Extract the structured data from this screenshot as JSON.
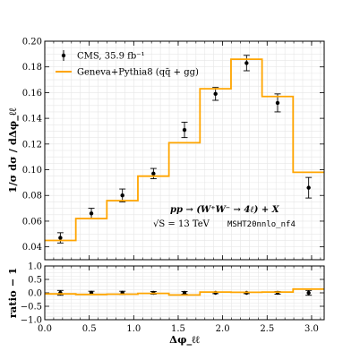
{
  "chart_data": [
    {
      "type": "line",
      "panel": "main",
      "ylabel": "1/σ dσ / dΔφ_ℓℓ",
      "ylim": [
        0.03,
        0.2
      ],
      "xlim": [
        0.0,
        3.1416
      ],
      "grid": true,
      "xticks": [
        "0.0",
        "0.5",
        "1.0",
        "1.5",
        "2.0",
        "2.5",
        "3.0"
      ],
      "xtick_values": [
        0.0,
        0.5,
        1.0,
        1.5,
        2.0,
        2.5,
        3.0
      ],
      "yticks": [
        "0.04",
        "0.06",
        "0.08",
        "0.10",
        "0.12",
        "0.14",
        "0.16",
        "0.18",
        "0.20"
      ],
      "ytick_values": [
        0.04,
        0.06,
        0.08,
        0.1,
        0.12,
        0.14,
        0.16,
        0.18,
        0.2
      ],
      "legend_position": "top-left",
      "legend": [
        {
          "label": "CMS, 35.9 fb⁻¹",
          "marker": "errorbar"
        },
        {
          "label": "Geneva+Pythia8 (qq̄ + gg)",
          "marker": "line"
        }
      ],
      "annotations": {
        "process": "pp → (W⁺W⁻ → 4ℓ) + X",
        "energy": "√S = 13 TeV",
        "pdf": "MSHT20nnlo_nf4"
      },
      "series": [
        {
          "name": "CMS, 35.9 fb⁻¹",
          "kind": "errorbar",
          "color": "#000000",
          "x": [
            0.175,
            0.524,
            0.873,
            1.222,
            1.571,
            1.92,
            2.269,
            2.618,
            2.967
          ],
          "y": [
            0.047,
            0.066,
            0.08,
            0.097,
            0.131,
            0.159,
            0.183,
            0.152,
            0.086
          ],
          "yerr": [
            0.004,
            0.004,
            0.005,
            0.004,
            0.006,
            0.005,
            0.006,
            0.007,
            0.008
          ]
        },
        {
          "name": "Geneva+Pythia8 (qq̄ + gg)",
          "kind": "step",
          "color": "#FFA500",
          "bin_edges": [
            0.0,
            0.349,
            0.698,
            1.047,
            1.396,
            1.745,
            2.094,
            2.443,
            2.792,
            3.1416
          ],
          "values": [
            0.045,
            0.062,
            0.076,
            0.095,
            0.121,
            0.163,
            0.186,
            0.157,
            0.098
          ]
        }
      ]
    },
    {
      "type": "line",
      "panel": "ratio",
      "xlabel": "Δφ_ℓℓ",
      "ylabel": "ratio − 1",
      "ylim": [
        -1.0,
        1.0
      ],
      "xlim": [
        0.0,
        3.1416
      ],
      "grid": true,
      "xticks": [
        "0.0",
        "0.5",
        "1.0",
        "1.5",
        "2.0",
        "2.5",
        "3.0"
      ],
      "xtick_values": [
        0.0,
        0.5,
        1.0,
        1.5,
        2.0,
        2.5,
        3.0
      ],
      "yticks": [
        "1.0",
        "0.5",
        "0.0",
        "−0.5",
        "−1.0"
      ],
      "ytick_values": [
        1.0,
        0.5,
        0.0,
        -0.5,
        -1.0
      ],
      "series": [
        {
          "name": "CMS, 35.9 fb⁻¹",
          "kind": "errorbar",
          "color": "#000000",
          "x": [
            0.175,
            0.524,
            0.873,
            1.222,
            1.571,
            1.92,
            2.269,
            2.618,
            2.967
          ],
          "y": [
            0.0,
            0.0,
            0.0,
            0.0,
            0.0,
            0.0,
            0.0,
            0.0,
            0.0
          ],
          "yerr": [
            0.09,
            0.06,
            0.06,
            0.05,
            0.05,
            0.03,
            0.03,
            0.05,
            0.09
          ]
        },
        {
          "name": "Geneva+Pythia8 (qq̄ + gg)",
          "kind": "step",
          "color": "#FFA500",
          "bin_edges": [
            0.0,
            0.349,
            0.698,
            1.047,
            1.396,
            1.745,
            2.094,
            2.443,
            2.792,
            3.1416
          ],
          "values": [
            -0.04,
            -0.06,
            -0.05,
            -0.02,
            -0.08,
            0.03,
            0.02,
            0.03,
            0.14
          ]
        }
      ]
    }
  ]
}
